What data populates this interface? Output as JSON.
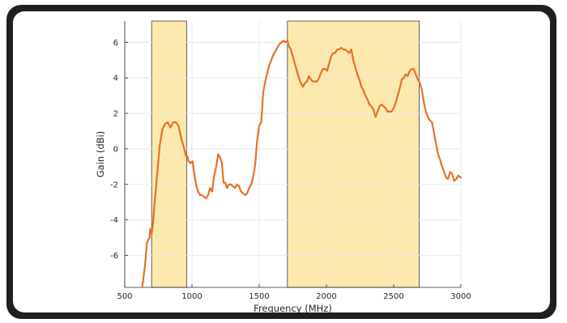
{
  "chart_data": {
    "type": "line",
    "title": "",
    "xlabel": "Frequency (MHz)",
    "ylabel": "Gain (dBi)",
    "xlim": [
      500,
      3000
    ],
    "ylim": [
      -7.8,
      7.2
    ],
    "xticks": [
      500,
      1000,
      1500,
      2000,
      2500,
      3000
    ],
    "yticks": [
      -6,
      -4,
      -2,
      0,
      2,
      4,
      6
    ],
    "grid": true,
    "line_color": "#e8702a",
    "band_color": "#fde9ae",
    "bands": [
      {
        "x0": 700,
        "x1": 960
      },
      {
        "x0": 1710,
        "x1": 2690
      }
    ],
    "series": [
      {
        "x": [
          630,
          650,
          665,
          675,
          685,
          690,
          700,
          710,
          720,
          730,
          745,
          760,
          780,
          800,
          820,
          840,
          860,
          880,
          900,
          920,
          940,
          955,
          965,
          975,
          990,
          1005,
          1015,
          1030,
          1045,
          1060,
          1075,
          1090,
          1105,
          1120,
          1135,
          1150,
          1165,
          1180,
          1195,
          1210,
          1222,
          1235,
          1248,
          1260,
          1275,
          1290,
          1305,
          1320,
          1335,
          1350,
          1365,
          1380,
          1395,
          1410,
          1425,
          1440,
          1455,
          1470,
          1485,
          1500,
          1515,
          1530,
          1545,
          1560,
          1575,
          1590,
          1605,
          1620,
          1635,
          1650,
          1665,
          1680,
          1695,
          1710,
          1720,
          1735,
          1750,
          1765,
          1780,
          1795,
          1810,
          1825,
          1840,
          1855,
          1870,
          1885,
          1900,
          1915,
          1930,
          1945,
          1960,
          1975,
          1990,
          2005,
          2020,
          2035,
          2050,
          2065,
          2080,
          2095,
          2110,
          2125,
          2140,
          2155,
          2170,
          2185,
          2200,
          2215,
          2230,
          2245,
          2260,
          2275,
          2290,
          2305,
          2320,
          2335,
          2350,
          2365,
          2380,
          2395,
          2410,
          2425,
          2440,
          2455,
          2470,
          2485,
          2500,
          2515,
          2530,
          2545,
          2560,
          2575,
          2590,
          2605,
          2620,
          2635,
          2650,
          2665,
          2680,
          2695,
          2710,
          2725,
          2740,
          2755,
          2770,
          2785,
          2800,
          2815,
          2830,
          2845,
          2860,
          2875,
          2890,
          2905,
          2920,
          2935,
          2950,
          2965,
          2980,
          2995,
          3000
        ],
        "y": [
          -7.8,
          -6.6,
          -5.3,
          -5.1,
          -5.0,
          -4.5,
          -4.8,
          -4.2,
          -3.2,
          -2.4,
          -1.1,
          0.2,
          1.1,
          1.4,
          1.5,
          1.2,
          1.5,
          1.5,
          1.3,
          0.6,
          0.1,
          -0.4,
          -0.4,
          -0.7,
          -0.8,
          -0.7,
          -1.3,
          -2.0,
          -2.4,
          -2.6,
          -2.6,
          -2.7,
          -2.8,
          -2.6,
          -2.2,
          -2.4,
          -1.5,
          -1.0,
          -0.3,
          -0.5,
          -0.8,
          -1.9,
          -1.9,
          -2.2,
          -2.0,
          -2.0,
          -2.1,
          -2.2,
          -2.0,
          -2.1,
          -2.4,
          -2.5,
          -2.6,
          -2.5,
          -2.2,
          -2.0,
          -1.6,
          -0.9,
          0.5,
          1.3,
          1.5,
          3.2,
          3.8,
          4.3,
          4.7,
          5.0,
          5.3,
          5.5,
          5.7,
          5.9,
          6.0,
          6.1,
          6.0,
          6.1,
          5.8,
          5.6,
          5.2,
          4.8,
          4.4,
          4.0,
          3.7,
          3.5,
          3.7,
          3.8,
          4.1,
          3.9,
          3.8,
          3.8,
          3.8,
          4.0,
          4.3,
          4.5,
          4.5,
          4.4,
          4.8,
          5.2,
          5.4,
          5.4,
          5.6,
          5.6,
          5.7,
          5.6,
          5.6,
          5.5,
          5.4,
          5.6,
          5.0,
          4.6,
          4.2,
          3.9,
          3.5,
          3.3,
          3.0,
          2.8,
          2.5,
          2.4,
          2.2,
          1.8,
          2.1,
          2.4,
          2.5,
          2.4,
          2.3,
          2.1,
          2.1,
          2.1,
          2.3,
          2.6,
          3.0,
          3.4,
          3.9,
          4.0,
          4.2,
          4.1,
          4.4,
          4.5,
          4.5,
          4.2,
          3.9,
          3.7,
          3.3,
          2.6,
          2.1,
          1.8,
          1.6,
          1.5,
          0.9,
          0.3,
          -0.3,
          -0.6,
          -1.0,
          -1.3,
          -1.6,
          -1.7,
          -1.3,
          -1.4,
          -1.8,
          -1.7,
          -1.5,
          -1.6,
          -1.6
        ]
      }
    ]
  }
}
